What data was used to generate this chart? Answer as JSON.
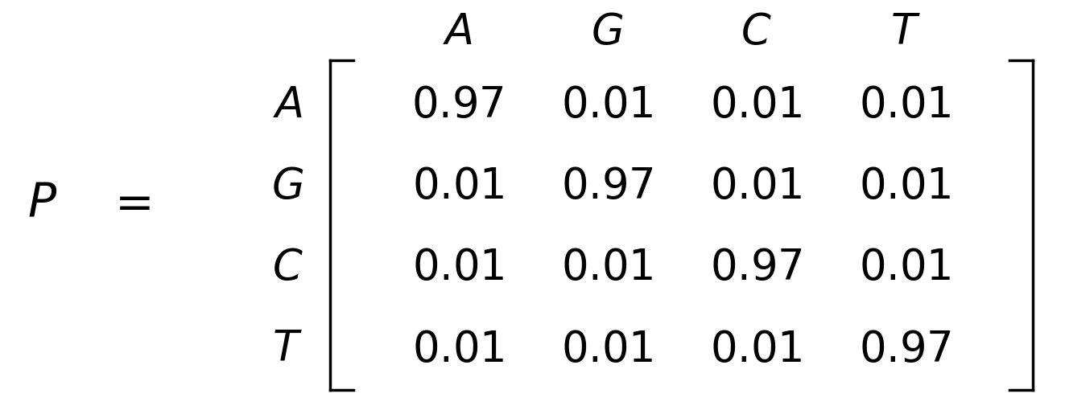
{
  "title": "",
  "background_color": "#ffffff",
  "nucleotides": [
    "A",
    "G",
    "C",
    "T"
  ],
  "matrix": [
    [
      0.97,
      0.01,
      0.01,
      0.01
    ],
    [
      0.01,
      0.97,
      0.01,
      0.01
    ],
    [
      0.01,
      0.01,
      0.97,
      0.01
    ],
    [
      0.01,
      0.01,
      0.01,
      0.97
    ]
  ],
  "diag_value": "0.97",
  "off_diag_value": "0.01",
  "font_size_labels": 38,
  "font_size_matrix": 38,
  "font_size_preamble": 42,
  "text_color": "#000000"
}
